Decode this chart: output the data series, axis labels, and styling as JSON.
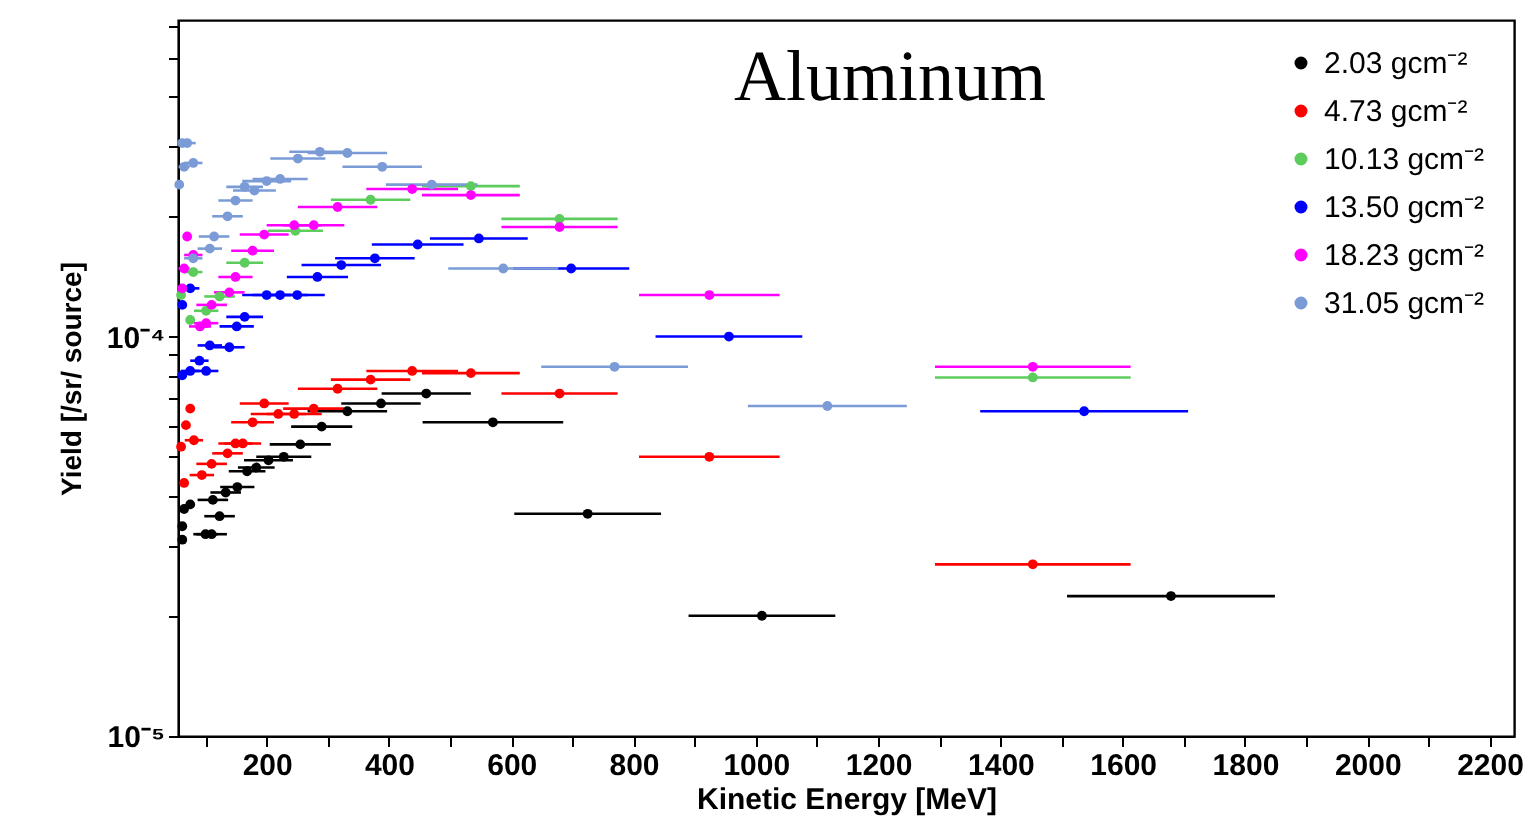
{
  "chart_data": {
    "type": "scatter",
    "title": "Aluminum",
    "xlabel": "Kinetic Energy [MeV]",
    "ylabel": "Yield [/sr/ source]",
    "log": "y",
    "marker": "circle",
    "legend": "top right",
    "grid": false,
    "xlim": [
      55,
      2240
    ],
    "xticks": [
      {
        "value": 100,
        "label": null
      },
      200,
      {
        "value": 300,
        "label": null
      },
      400,
      {
        "value": 500,
        "label": null
      },
      600,
      {
        "value": 700,
        "label": null
      },
      800,
      {
        "value": 900,
        "label": null
      },
      1000,
      {
        "value": 1100,
        "label": null
      },
      1200,
      {
        "value": 1300,
        "label": null
      },
      1400,
      {
        "value": 1500,
        "label": null
      },
      1600,
      {
        "value": 1700,
        "label": null
      },
      1800,
      {
        "value": 1900,
        "label": null
      },
      2000,
      {
        "value": 2100,
        "label": null
      },
      2200
    ],
    "ylim": [
      1e-05,
      0.00062
    ],
    "yticks": [
      {
        "value": 1e-05,
        "label": "10⁻⁵"
      },
      {
        "value": 2e-05,
        "label": null
      },
      {
        "value": 3e-05,
        "label": null
      },
      {
        "value": 4e-05,
        "label": null
      },
      {
        "value": 5e-05,
        "label": null
      },
      {
        "value": 6e-05,
        "label": null
      },
      {
        "value": 7e-05,
        "label": null
      },
      {
        "value": 8e-05,
        "label": null
      },
      {
        "value": 9e-05,
        "label": null
      },
      {
        "value": 0.0001,
        "label": "10⁻⁴"
      },
      {
        "value": 0.0002,
        "label": null
      },
      {
        "value": 0.0003,
        "label": null
      },
      {
        "value": 0.0004,
        "label": null
      },
      {
        "value": 0.0005,
        "label": null
      },
      {
        "value": 0.0006,
        "label": null
      }
    ],
    "series": [
      {
        "name": "2.03 gcm⁻²",
        "color": "#000000",
        "x": [
          1679,
          1010,
          725,
          570,
          461,
          387,
          332,
          290,
          255,
          228,
          203,
          183,
          168,
          152,
          133,
          112,
          75,
          65,
          123,
          110,
          100,
          62,
          62
        ],
        "values": [
          2.24e-05,
          2e-05,
          3.6e-05,
          6.1e-05,
          7.2e-05,
          6.8e-05,
          6.5e-05,
          5.95e-05,
          5.37e-05,
          5e-05,
          4.9e-05,
          4.7e-05,
          4.6e-05,
          4.2e-05,
          4.07e-05,
          3.9e-05,
          3.8e-05,
          3.7e-05,
          3.55e-05,
          3.2e-05,
          3.2e-05,
          3.35e-05,
          3.1e-05
        ],
        "xerrors": [
          170,
          120,
          120,
          115,
          73,
          65,
          65,
          50,
          50,
          45,
          40,
          30,
          30,
          28,
          25,
          25,
          null,
          null,
          25,
          25,
          20,
          6,
          6
        ]
      },
      {
        "name": "4.73 gcm⁻²",
        "color": "#ff0000",
        "x": [
          1453,
          924,
          679,
          534,
          438,
          370,
          316,
          277,
          245,
          219,
          196,
          177,
          161,
          149,
          136,
          110,
          94,
          75,
          81,
          68,
          60,
          65
        ],
        "values": [
          2.69e-05,
          5e-05,
          7.2e-05,
          8.1e-05,
          8.2e-05,
          7.8e-05,
          7.4e-05,
          6.6e-05,
          6.4e-05,
          6.4e-05,
          6.8e-05,
          6.1e-05,
          5.4e-05,
          5.4e-05,
          5.1e-05,
          4.8e-05,
          4.5e-05,
          6.6e-05,
          5.5e-05,
          6e-05,
          5.3e-05,
          4.3e-05
        ],
        "xerrors": [
          160,
          115,
          95,
          80,
          75,
          65,
          65,
          50,
          45,
          45,
          40,
          35,
          30,
          28,
          25,
          25,
          20,
          null,
          15,
          null,
          4,
          null
        ]
      },
      {
        "name": "10.13 gcm⁻²",
        "color": "#5ccc5c",
        "x": [
          1453,
          679,
          534,
          370,
          247,
          164,
          123,
          101,
          80,
          75,
          60
        ],
        "values": [
          7.9e-05,
          0.000197,
          0.000238,
          0.00022,
          0.000184,
          0.000153,
          0.000126,
          0.000116,
          0.000145,
          0.00011,
          0.000127
        ],
        "xerrors": [
          160,
          95,
          80,
          65,
          45,
          30,
          25,
          20,
          15,
          null,
          4
        ]
      },
      {
        "name": "13.50 gcm⁻²",
        "color": "#0000ff",
        "x": [
          1537,
          956,
          698,
          547,
          447,
          377,
          322,
          283,
          250,
          222,
          200,
          164,
          151,
          139,
          107,
          101,
          90,
          75,
          62,
          62,
          75
        ],
        "values": [
          6.5e-05,
          0.0001,
          0.000148,
          0.000176,
          0.00017,
          0.000157,
          0.000151,
          0.000141,
          0.000127,
          0.000127,
          0.000127,
          0.000112,
          0.000106,
          9.4e-05,
          9.5e-05,
          8.2e-05,
          8.7e-05,
          8.2e-05,
          8e-05,
          0.00012,
          0.000132
        ],
        "xerrors": [
          170,
          120,
          95,
          80,
          75,
          65,
          65,
          50,
          45,
          45,
          40,
          30,
          28,
          25,
          20,
          20,
          15,
          15,
          6,
          6,
          15
        ]
      },
      {
        "name": "18.23 gcm⁻²",
        "color": "#ff00ff",
        "x": [
          1453,
          924,
          679,
          534,
          438,
          316,
          277,
          245,
          196,
          177,
          149,
          139,
          110,
          101,
          91,
          80,
          70,
          62,
          65
        ],
        "values": [
          8.4e-05,
          0.000127,
          0.000188,
          0.000226,
          0.000234,
          0.000211,
          0.00019,
          0.00019,
          0.00018,
          0.000164,
          0.000141,
          0.000129,
          0.00012,
          0.000108,
          0.000106,
          0.00016,
          0.000178,
          0.000132,
          0.000148
        ],
        "xerrors": [
          160,
          115,
          95,
          80,
          75,
          65,
          50,
          45,
          40,
          35,
          28,
          25,
          25,
          20,
          18,
          15,
          null,
          6,
          9
        ]
      },
      {
        "name": "31.05 gcm⁻²",
        "color": "#7b9bd6",
        "x": [
          1117,
          769,
          587,
          470,
          389,
          332,
          287,
          251,
          222,
          200,
          180,
          164,
          149,
          136,
          114,
          107,
          80,
          70,
          62,
          65,
          57,
          80
        ],
        "values": [
          6.7e-05,
          8.4e-05,
          0.000148,
          0.00024,
          0.000266,
          0.000288,
          0.00029,
          0.000279,
          0.000248,
          0.000245,
          0.000232,
          0.000237,
          0.000219,
          0.0002,
          0.000178,
          0.000166,
          0.000272,
          0.000305,
          0.000305,
          0.000266,
          0.00024,
          0.000157
        ],
        "xerrors": [
          130,
          120,
          90,
          75,
          65,
          65,
          50,
          45,
          45,
          40,
          35,
          30,
          28,
          25,
          25,
          20,
          15,
          14,
          6,
          9,
          2,
          15
        ]
      }
    ]
  }
}
